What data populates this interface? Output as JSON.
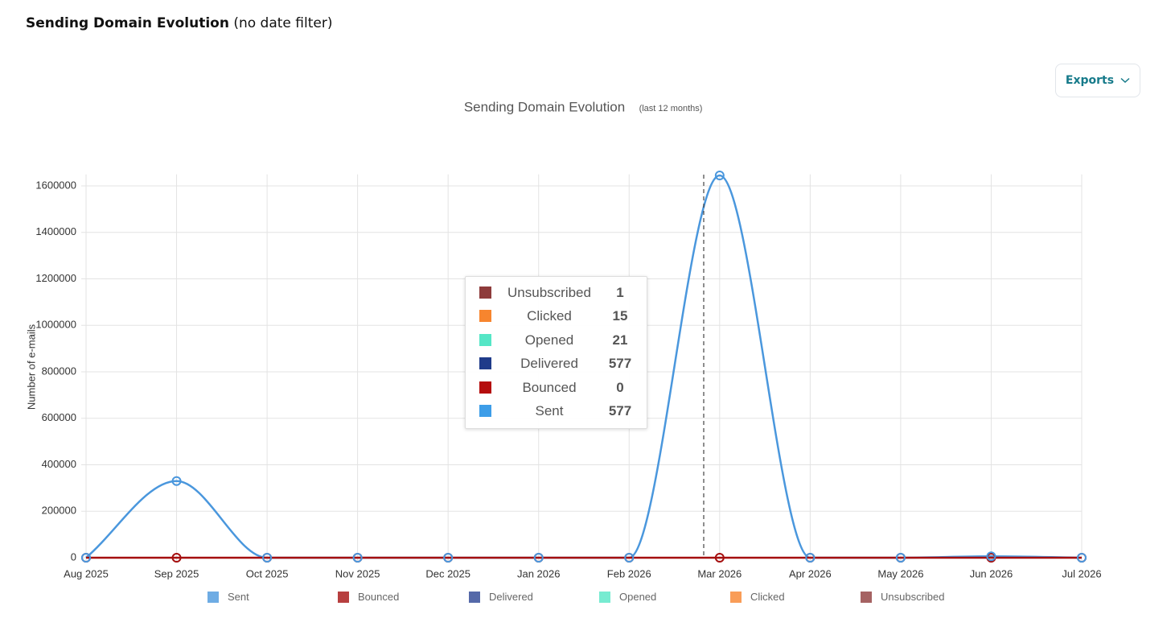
{
  "page": {
    "heading": "Sending Domain Evolution",
    "heading_note": "(no date filter)",
    "export_button": "Exports"
  },
  "chart_data": {
    "type": "line",
    "title": "Sending Domain Evolution",
    "subtitle": "(last 12 months)",
    "y_label": "Number of e-mails",
    "categories": [
      "Aug 2025",
      "Sep 2025",
      "Oct 2025",
      "Nov 2025",
      "Dec 2025",
      "Jan 2026",
      "Feb 2026",
      "Mar 2026",
      "Apr 2026",
      "May 2026",
      "Jun 2026",
      "Jul 2026"
    ],
    "series": [
      {
        "name": "Sent",
        "color": "#4a97dd",
        "values": [
          0,
          330000,
          0,
          0,
          0,
          0,
          0,
          1645000,
          0,
          0,
          6000,
          0
        ]
      },
      {
        "name": "Bounced",
        "color": "#a50f0f",
        "values": [
          0,
          0,
          0,
          0,
          0,
          0,
          0,
          0,
          0,
          0,
          0,
          0
        ]
      },
      {
        "name": "Delivered",
        "color": "#2a4494",
        "values": [
          0,
          0,
          0,
          0,
          0,
          0,
          0,
          0,
          0,
          0,
          0,
          0
        ]
      },
      {
        "name": "Opened",
        "color": "#55e6c6",
        "values": [
          0,
          0,
          0,
          0,
          0,
          0,
          0,
          0,
          0,
          0,
          0,
          0
        ]
      },
      {
        "name": "Clicked",
        "color": "#f7852e",
        "values": [
          0,
          0,
          0,
          0,
          0,
          0,
          0,
          0,
          0,
          0,
          0,
          0
        ]
      },
      {
        "name": "Unsubscribed",
        "color": "#8e3b3b",
        "values": [
          0,
          0,
          0,
          0,
          0,
          0,
          0,
          0,
          0,
          0,
          0,
          0
        ]
      }
    ],
    "ylim": [
      0,
      1650000
    ],
    "yticks": [
      0,
      200000,
      400000,
      600000,
      800000,
      1000000,
      1200000,
      1400000,
      1600000
    ],
    "grid": true,
    "tooltip": [
      {
        "name": "Unsubscribed",
        "color": "#8e3b3b",
        "value": 1
      },
      {
        "name": "Clicked",
        "color": "#f7852e",
        "value": 15
      },
      {
        "name": "Opened",
        "color": "#55e6c6",
        "value": 21
      },
      {
        "name": "Delivered",
        "color": "#1f3b8a",
        "value": 577
      },
      {
        "name": "Bounced",
        "color": "#b50d0d",
        "value": 0
      },
      {
        "name": "Sent",
        "color": "#3d9de8",
        "value": 577
      }
    ]
  }
}
